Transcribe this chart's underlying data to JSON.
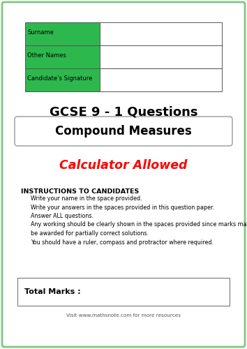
{
  "page_bg": "#ffffff",
  "border_color": "#7dc87d",
  "green_color": "#2db84d",
  "title1": "GCSE 9 - 1 Questions",
  "title2": "Compound Measures",
  "title3": "Calculator Allowed",
  "title3_color": "#ff0000",
  "table_labels": [
    "Surname",
    "Other Names",
    "Candidate’s Signature"
  ],
  "instructions_header": "INSTRUCTIONS TO CANDIDATES",
  "instructions": [
    "Write your name in the space provided.",
    "Write your answers in the spaces provided in this question paper.",
    "Answer ALL questions.",
    "Any working should be clearly shown in the spaces provided since marks may\nbe awarded for partially correct solutions.",
    "You should have a ruler, compass and protractor where required."
  ],
  "total_marks_label": "Total Marks :",
  "footer_pre": "Visit ",
  "footer_url": "www.mathsnote.com",
  "footer_post": " for more resources"
}
